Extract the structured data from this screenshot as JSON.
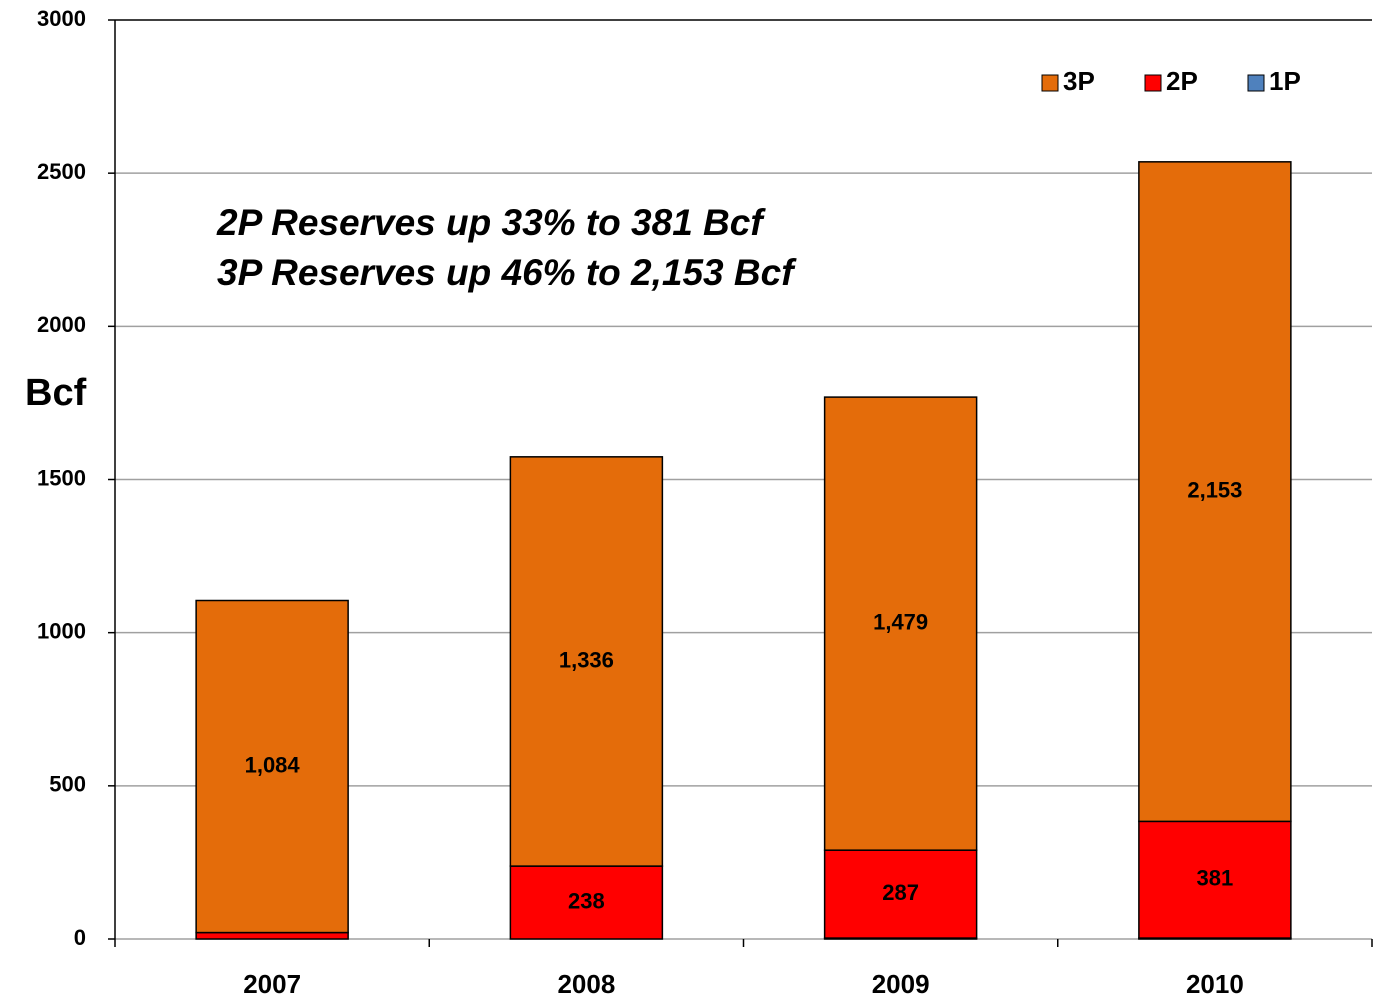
{
  "chart_data": {
    "type": "stacked_bar",
    "annotations": [
      "2P Reserves up 33% to 381 Bcf",
      "3P Reserves up 46% to 2,153 Bcf"
    ],
    "y_label": "Bcf",
    "categories": [
      "2007",
      "2008",
      "2009",
      "2010"
    ],
    "series": [
      {
        "name": "1P",
        "color": "#4f81bd",
        "values": [
          null,
          null,
          3,
          3
        ]
      },
      {
        "name": "2P",
        "color": "#ff0000",
        "values": [
          21,
          238,
          287,
          381
        ]
      },
      {
        "name": "3P",
        "color": "#e46c0a",
        "values": [
          1084,
          1336,
          1479,
          2153
        ],
        "value_labels": [
          "1,084",
          "1,336",
          "1,479",
          "2,153"
        ]
      }
    ],
    "ylim": [
      0,
      3000
    ],
    "yticks": [
      0,
      500,
      1000,
      1500,
      2000,
      2500,
      3000
    ],
    "grid": true,
    "legend": "top-right"
  }
}
